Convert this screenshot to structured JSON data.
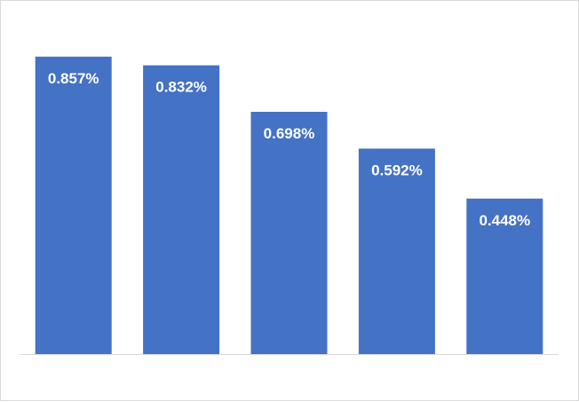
{
  "chart_data": {
    "type": "bar",
    "categories": [
      "",
      "",
      "",
      "",
      ""
    ],
    "values": [
      0.857,
      0.832,
      0.698,
      0.592,
      0.448
    ],
    "data_labels": [
      "0.857%",
      "0.832%",
      "0.698%",
      "0.592%",
      "0.448%"
    ],
    "title": "",
    "xlabel": "",
    "ylabel": "",
    "ylim": [
      0,
      0.9
    ],
    "grid": false,
    "legend": "none",
    "bar_color": "#4472c4",
    "label_color": "#ffffff",
    "axis_color": "#d9d9d9"
  }
}
